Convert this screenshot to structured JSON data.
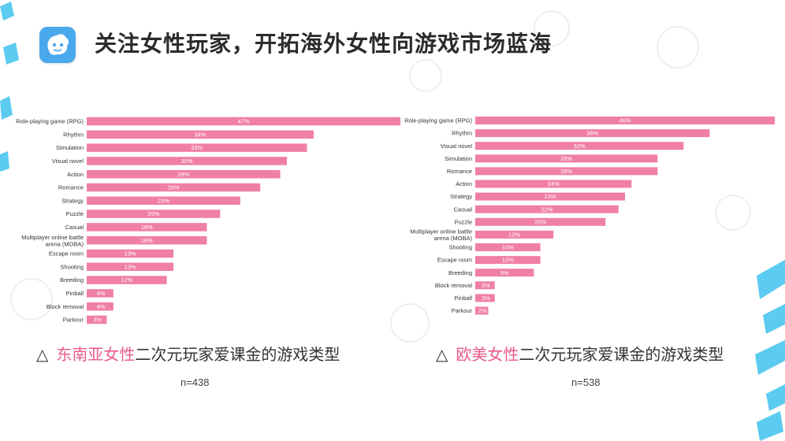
{
  "page": {
    "title": "关注女性玩家，开拓海外女性向游戏市场蓝海"
  },
  "colors": {
    "bar": "#f07fa4",
    "highlight": "#ea5a87",
    "logo": "#4aa8ec",
    "deco": "#40c2ee"
  },
  "icons": {
    "logo": "game-logo-icon",
    "caption_marker": "triangle-outline-icon"
  },
  "charts": [
    {
      "caption": {
        "marker": "△",
        "highlight": "东南亚女性",
        "rest": "二次元玩家爱课金的游戏类型"
      },
      "sample": "n=438"
    },
    {
      "caption": {
        "marker": "△",
        "highlight": "欧美女性",
        "rest": "二次元玩家爱课金的游戏类型"
      },
      "sample": "n=538"
    }
  ],
  "chart_data": [
    {
      "type": "bar",
      "orientation": "horizontal",
      "categories": [
        "Role-playing game (RPG)",
        "Rhythm",
        "Simulation",
        "Visual novel",
        "Action",
        "Romance",
        "Strategy",
        "Puzzle",
        "Casual",
        "Multiplayer online battle arena (MOBA)",
        "Escape room",
        "Shooting",
        "Breeding",
        "Pinball",
        "Block removal",
        "Parkour"
      ],
      "values": [
        47,
        34,
        33,
        30,
        29,
        26,
        23,
        20,
        18,
        18,
        13,
        13,
        12,
        4,
        4,
        3
      ],
      "value_labels": [
        "47%",
        "34%",
        "33%",
        "30%",
        "29%",
        "26%",
        "23%",
        "20%",
        "18%",
        "18%",
        "13%",
        "13%",
        "12%",
        "4%",
        "4%",
        "3%"
      ],
      "xlim": [
        0,
        47
      ]
    },
    {
      "type": "bar",
      "orientation": "horizontal",
      "categories": [
        "Role-playing game (RPG)",
        "Rhythm",
        "Visual novel",
        "Simulation",
        "Romance",
        "Action",
        "Strategy",
        "Casual",
        "Puzzle",
        "Multiplayer online battle arena (MOBA)",
        "Shooting",
        "Escape room",
        "Breeding",
        "Block removal",
        "Pinball",
        "Parkour"
      ],
      "values": [
        46,
        36,
        32,
        28,
        28,
        24,
        23,
        22,
        20,
        12,
        10,
        10,
        9,
        3,
        3,
        2
      ],
      "value_labels": [
        "46%",
        "36%",
        "32%",
        "28%",
        "28%",
        "24%",
        "23%",
        "22%",
        "20%",
        "12%",
        "10%",
        "10%",
        "9%",
        "3%",
        "3%",
        "2%"
      ],
      "xlim": [
        0,
        46
      ]
    }
  ]
}
